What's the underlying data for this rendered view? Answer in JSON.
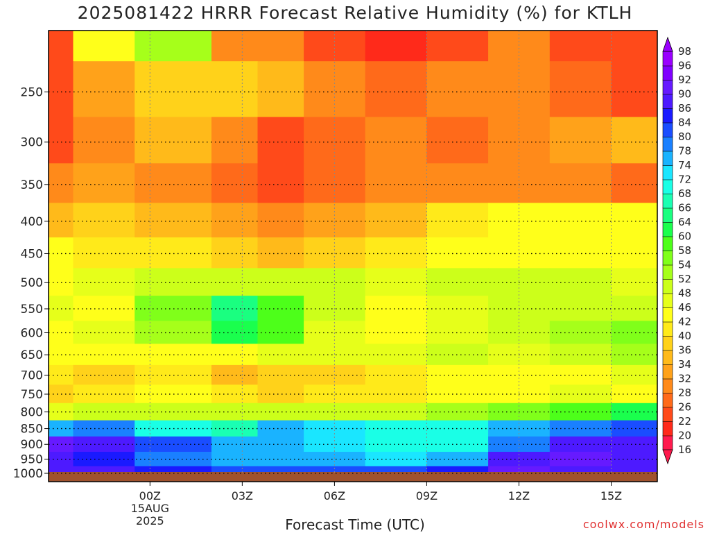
{
  "title": "2025081422 HRRR Forecast Relative Humidity (%) for KTLH",
  "xlabel": "Forecast Time (UTC)",
  "credit": "coolwx.com/models",
  "chart_data": {
    "type": "heatmap",
    "title": "2025081422 HRRR Forecast Relative Humidity (%) for KTLH",
    "xlabel": "Forecast Time (UTC)",
    "ylabel": "",
    "x_ticks": [
      "00Z",
      "03Z",
      "06Z",
      "09Z",
      "12Z",
      "15Z"
    ],
    "x_tick_date": [
      "15AUG",
      "2025"
    ],
    "y_ticks": [
      250,
      300,
      350,
      400,
      450,
      500,
      550,
      600,
      650,
      700,
      750,
      800,
      850,
      900,
      950,
      1000
    ],
    "y_scale": "log pressure (hPa)",
    "ylim": [
      1000,
      200
    ],
    "colorbar_levels": [
      16,
      20,
      22,
      26,
      28,
      32,
      34,
      36,
      40,
      42,
      46,
      48,
      52,
      54,
      58,
      60,
      64,
      66,
      68,
      72,
      74,
      78,
      80,
      84,
      86,
      90,
      92,
      96,
      98
    ],
    "colorbar_colors": [
      "#ff1a4d",
      "#ff2a1a",
      "#ff4a1a",
      "#ff6a1a",
      "#ff8a1a",
      "#ffa21a",
      "#ffba1a",
      "#ffd21a",
      "#ffea1a",
      "#ffff1a",
      "#e6ff1a",
      "#ccff1a",
      "#a6ff1a",
      "#80ff1a",
      "#4dff1a",
      "#1aff4d",
      "#1aff80",
      "#1affb3",
      "#1affe6",
      "#1ae6ff",
      "#1ab3ff",
      "#1a80ff",
      "#1a4dff",
      "#1a1aff",
      "#4d1aff",
      "#661aff",
      "#8000ff",
      "#9a00ff"
    ],
    "profiles_by_level": {
      "200": [
        24,
        42,
        52,
        30,
        28,
        24,
        20,
        24,
        28,
        24,
        22
      ],
      "250": [
        22,
        32,
        36,
        38,
        34,
        30,
        26,
        28,
        30,
        26,
        24
      ],
      "300": [
        24,
        30,
        34,
        28,
        24,
        26,
        28,
        26,
        30,
        32,
        34
      ],
      "350": [
        28,
        32,
        30,
        26,
        24,
        26,
        28,
        28,
        30,
        28,
        26
      ],
      "400": [
        34,
        36,
        34,
        32,
        30,
        32,
        34,
        40,
        42,
        44,
        42
      ],
      "450": [
        42,
        40,
        40,
        36,
        34,
        38,
        40,
        42,
        42,
        44,
        44
      ],
      "500": [
        44,
        46,
        48,
        48,
        50,
        48,
        46,
        48,
        50,
        48,
        46
      ],
      "550": [
        46,
        44,
        54,
        64,
        58,
        48,
        44,
        46,
        48,
        50,
        50
      ],
      "600": [
        44,
        46,
        52,
        60,
        58,
        46,
        44,
        46,
        50,
        52,
        54
      ],
      "650": [
        42,
        44,
        44,
        44,
        46,
        46,
        46,
        48,
        46,
        48,
        52
      ],
      "700": [
        40,
        38,
        40,
        34,
        36,
        38,
        40,
        42,
        44,
        44,
        46
      ],
      "750": [
        36,
        40,
        42,
        40,
        38,
        40,
        40,
        42,
        44,
        46,
        44
      ],
      "800": [
        46,
        48,
        50,
        48,
        48,
        48,
        50,
        52,
        54,
        58,
        62
      ],
      "850": [
        74,
        78,
        70,
        66,
        74,
        72,
        70,
        68,
        74,
        78,
        80
      ],
      "900": [
        90,
        86,
        80,
        74,
        74,
        72,
        70,
        70,
        78,
        86,
        86
      ],
      "950": [
        86,
        84,
        78,
        76,
        74,
        74,
        72,
        76,
        86,
        90,
        88
      ],
      "1000": [
        88,
        86,
        84,
        82,
        82,
        80,
        80,
        84,
        90,
        88,
        86
      ]
    },
    "profile_times": [
      "21Z",
      "22Z",
      "01Z",
      "03Z",
      "04Z",
      "06Z",
      "08Z",
      "10Z",
      "12Z",
      "14Z",
      "16Z"
    ],
    "grid": true,
    "legend_placement": "right colorbar"
  }
}
